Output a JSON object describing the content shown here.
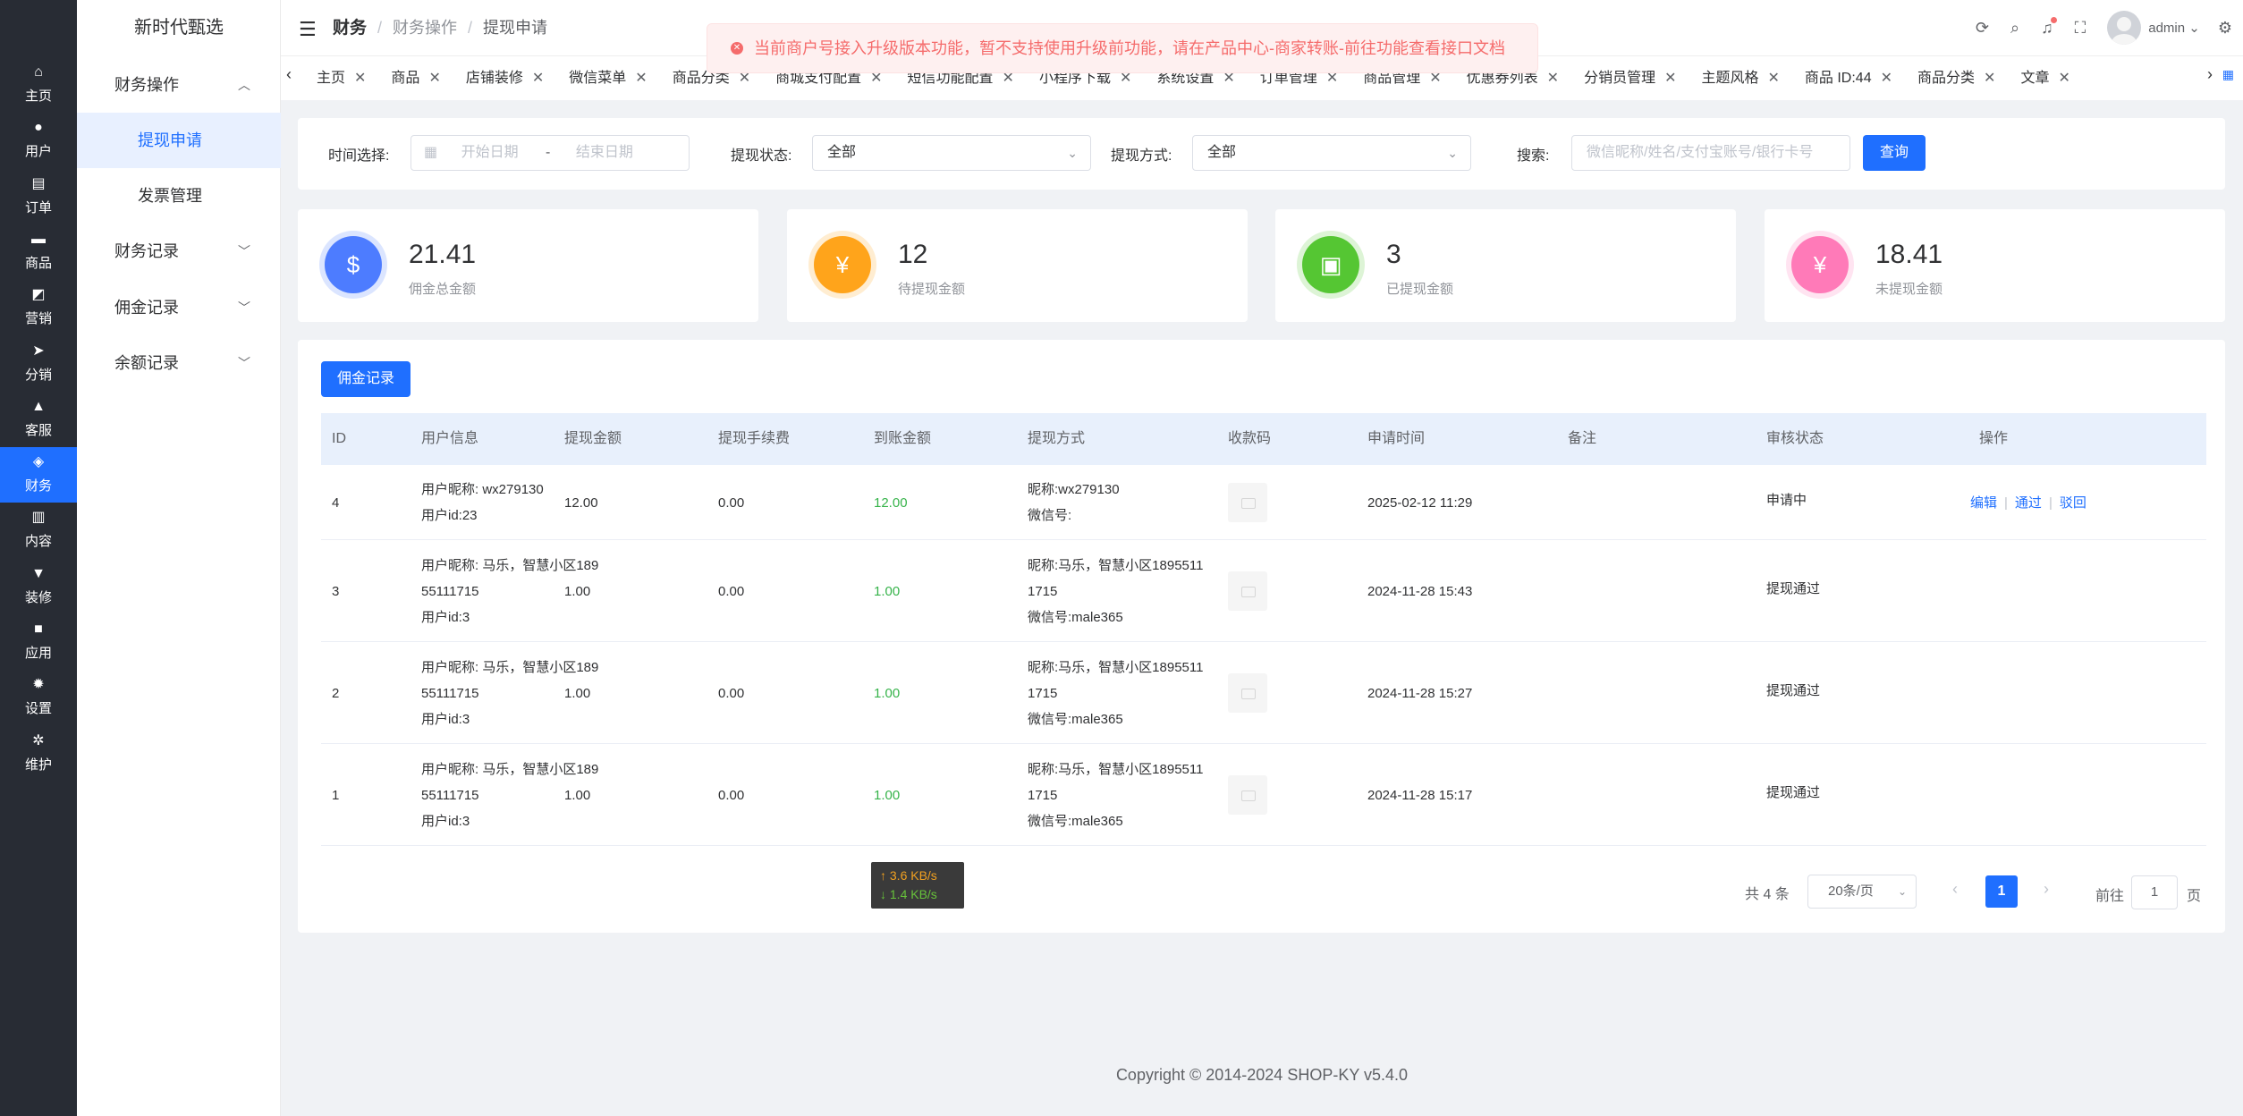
{
  "rail": [
    {
      "icon": "home-icon",
      "glyph": "⌂",
      "label": "主页"
    },
    {
      "icon": "user-icon",
      "glyph": "●",
      "label": "用户"
    },
    {
      "icon": "order-icon",
      "glyph": "▤",
      "label": "订单"
    },
    {
      "icon": "goods-icon",
      "glyph": "▬",
      "label": "商品"
    },
    {
      "icon": "marketing-icon",
      "glyph": "◩",
      "label": "营销"
    },
    {
      "icon": "distribution-icon",
      "glyph": "➤",
      "label": "分销"
    },
    {
      "icon": "service-icon",
      "glyph": "▲",
      "label": "客服"
    },
    {
      "icon": "finance-icon",
      "glyph": "◈",
      "label": "财务",
      "active": true
    },
    {
      "icon": "content-icon",
      "glyph": "▥",
      "label": "内容"
    },
    {
      "icon": "decorate-icon",
      "glyph": "▼",
      "label": "装修"
    },
    {
      "icon": "apps-icon",
      "glyph": "■",
      "label": "应用"
    },
    {
      "icon": "settings-icon",
      "glyph": "✹",
      "label": "设置"
    },
    {
      "icon": "maintenance-icon",
      "glyph": "✲",
      "label": "维护"
    }
  ],
  "submenu": {
    "brand": "新时代甄选",
    "items": [
      {
        "label": "财务操作",
        "chevron": "^"
      },
      {
        "label": "提现申请",
        "active": true
      },
      {
        "label": "发票管理"
      },
      {
        "label": "财务记录",
        "chevron": "v"
      },
      {
        "label": "佣金记录",
        "chevron": "v"
      },
      {
        "label": "余额记录",
        "chevron": "v"
      }
    ]
  },
  "header": {
    "crumb_root": "财务",
    "crumb_mid": "财务操作",
    "crumb_cur": "提现申请",
    "notice": "当前商户号接入升级版本功能，暂不支持使用升级前功能，请在产品中心-商家转账-前往功能查看接口文档",
    "username": "admin"
  },
  "tabs": [
    "主页",
    "商品",
    "店铺装修",
    "微信菜单",
    "商品分类",
    "商城支付配置",
    "短信功能配置",
    "小程序下载",
    "系统设置",
    "订单管理",
    "商品管理",
    "优惠券列表",
    "分销员管理",
    "主题风格",
    "商品 ID:44",
    "商品分类",
    "文章"
  ],
  "filter": {
    "time_label": "时间选择:",
    "start_ph": "开始日期",
    "range_sep": "-",
    "end_ph": "结束日期",
    "status_label": "提现状态:",
    "status_value": "全部",
    "method_label": "提现方式:",
    "method_value": "全部",
    "search_label": "搜索:",
    "search_ph": "微信昵称/姓名/支付宝账号/银行卡号",
    "query_btn": "查询"
  },
  "stats": [
    {
      "value": "21.41",
      "label": "佣金总金额",
      "color": "#4d7cff",
      "glyph": "$"
    },
    {
      "value": "12",
      "label": "待提现金额",
      "color": "#ffa41b",
      "glyph": "¥"
    },
    {
      "value": "3",
      "label": "已提现金额",
      "color": "#55c633",
      "glyph": "▣"
    },
    {
      "value": "18.41",
      "label": "未提现金额",
      "color": "#ff7ab8",
      "glyph": "¥"
    }
  ],
  "table": {
    "commission_btn": "佣金记录",
    "headers": [
      "ID",
      "用户信息",
      "提现金额",
      "提现手续费",
      "到账金额",
      "提现方式",
      "收款码",
      "申请时间",
      "备注",
      "审核状态",
      "操作"
    ],
    "rows": [
      {
        "id": "4",
        "user_lines": [
          "用户昵称: wx279130",
          "用户id:23"
        ],
        "amount": "12.00",
        "fee": "0.00",
        "received": "12.00",
        "method_lines": [
          "昵称:wx279130",
          "微信号:"
        ],
        "time": "2025-02-12 11:29",
        "remark": "",
        "status": "申请中",
        "ops": [
          "编辑",
          "通过",
          "驳回"
        ]
      },
      {
        "id": "3",
        "user_lines": [
          "用户昵称: 马乐，智慧小区189",
          "55111715",
          "用户id:3"
        ],
        "amount": "1.00",
        "fee": "0.00",
        "received": "1.00",
        "method_lines": [
          "昵称:马乐，智慧小区1895511",
          "1715",
          "微信号:male365"
        ],
        "time": "2024-11-28 15:43",
        "remark": "",
        "status": "提现通过",
        "ops": []
      },
      {
        "id": "2",
        "user_lines": [
          "用户昵称: 马乐，智慧小区189",
          "55111715",
          "用户id:3"
        ],
        "amount": "1.00",
        "fee": "0.00",
        "received": "1.00",
        "method_lines": [
          "昵称:马乐，智慧小区1895511",
          "1715",
          "微信号:male365"
        ],
        "time": "2024-11-28 15:27",
        "remark": "",
        "status": "提现通过",
        "ops": []
      },
      {
        "id": "1",
        "user_lines": [
          "用户昵称: 马乐，智慧小区189",
          "55111715",
          "用户id:3"
        ],
        "amount": "1.00",
        "fee": "0.00",
        "received": "1.00",
        "method_lines": [
          "昵称:马乐，智慧小区1895511",
          "1715",
          "微信号:male365"
        ],
        "time": "2024-11-28 15:17",
        "remark": "",
        "status": "提现通过",
        "ops": []
      }
    ]
  },
  "pagination": {
    "total": "共 4 条",
    "page_size": "20条/页",
    "current": "1",
    "goto_prefix": "前往",
    "goto_value": "1",
    "goto_suffix": "页"
  },
  "speed": {
    "up": "↑ 3.6 KB/s",
    "down": "↓ 1.4 KB/s"
  },
  "footer": "Copyright © 2014-2024 SHOP-KY v5.4.0"
}
